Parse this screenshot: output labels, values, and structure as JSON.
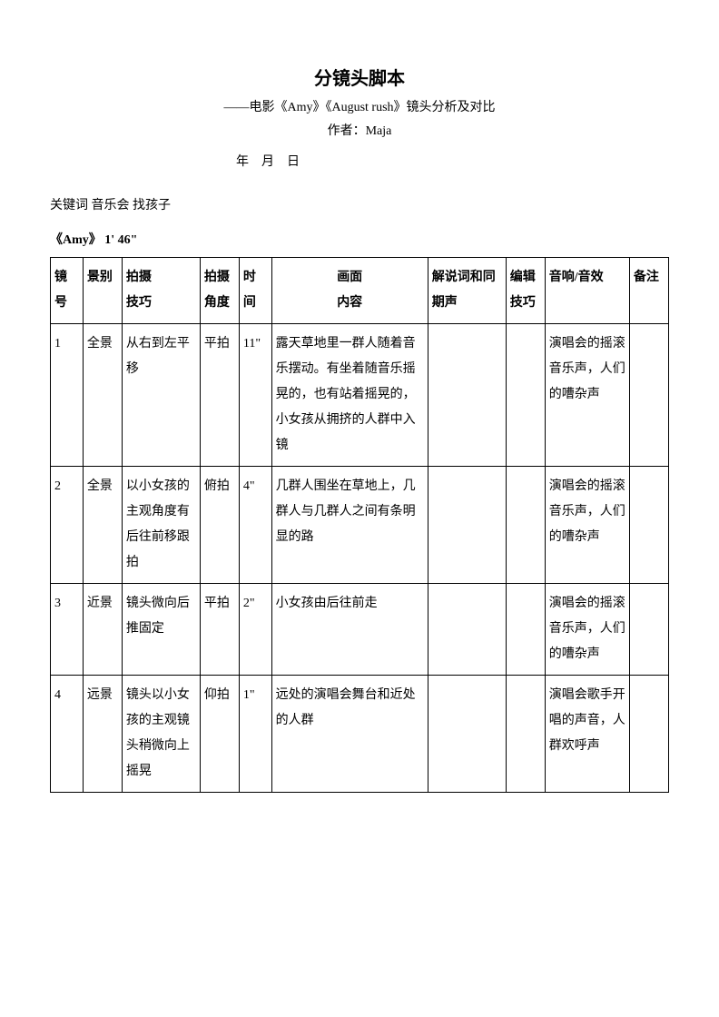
{
  "title": "分镜头脚本",
  "subtitle": "——电影《Amy》《August rush》镜头分析及对比",
  "author_label": "作者：Maja",
  "date_line": "年　月　日",
  "keywords": "关键词 音乐会 找孩子",
  "section_title": "《Amy》 1' 46\"",
  "headers": {
    "num": "镜号",
    "scene": "景别",
    "tech_l1": "拍摄",
    "tech_l2": "技巧",
    "angle_l1": "拍摄",
    "angle_l2": "角度",
    "time": "时间",
    "content_l1": "画面",
    "content_l2": "内容",
    "voice_l1": "解说词和同",
    "voice_l2": "期声",
    "edit_l1": "编辑",
    "edit_l2": "技巧",
    "sound": "音响/音效",
    "note": "备注"
  },
  "rows": [
    {
      "num": "1",
      "scene": "全景",
      "tech": "从右到左平移",
      "angle": "平拍",
      "time": "11\"",
      "content": "露天草地里一群人随着音乐摆动。有坐着随音乐摇晃的，也有站着摇晃的，小女孩从拥挤的人群中入镜",
      "voice": "",
      "edit": "",
      "sound": "演唱会的摇滚音乐声，人们的嘈杂声",
      "note": ""
    },
    {
      "num": "2",
      "scene": "全景",
      "tech": "以小女孩的主观角度有后往前移跟拍",
      "angle": "俯拍",
      "time": "4\"",
      "content": "几群人围坐在草地上，几群人与几群人之间有条明显的路",
      "voice": "",
      "edit": "",
      "sound": "演唱会的摇滚音乐声，人们的嘈杂声",
      "note": ""
    },
    {
      "num": "3",
      "scene": "近景",
      "tech": "镜头微向后推固定",
      "angle": "平拍",
      "time": "2\"",
      "content": "小女孩由后往前走",
      "voice": "",
      "edit": "",
      "sound": "演唱会的摇滚音乐声，人们的嘈杂声",
      "note": ""
    },
    {
      "num": "4",
      "scene": "远景",
      "tech": "镜头以小女孩的主观镜头稍微向上摇晃",
      "angle": "仰拍",
      "time": "1\"",
      "content": "远处的演唱会舞台和近处的人群",
      "voice": "",
      "edit": "",
      "sound": "演唱会歌手开唱的声音，人群欢呼声",
      "note": ""
    }
  ]
}
